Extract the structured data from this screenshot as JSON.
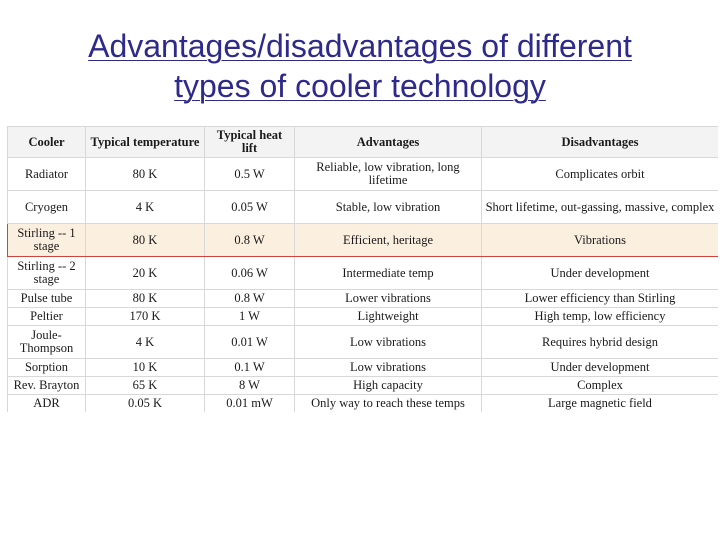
{
  "title": {
    "line1": "Advantages/disadvantages of different",
    "line2": "types of cooler technology"
  },
  "table": {
    "headers": [
      "Cooler",
      "Typical temperature",
      "Typical heat lift",
      "Advantages",
      "Disadvantages"
    ],
    "rows": [
      [
        "Radiator",
        "80 K",
        "0.5 W",
        "Reliable, low vibration, long lifetime",
        "Complicates orbit"
      ],
      [
        "Cryogen",
        "4 K",
        "0.05 W",
        "Stable, low vibration",
        "Short lifetime, out-gassing, massive, complex"
      ],
      [
        "Stirling -- 1 stage",
        "80 K",
        "0.8 W",
        "Efficient, heritage",
        "Vibrations"
      ],
      [
        "Stirling -- 2 stage",
        "20 K",
        "0.06 W",
        "Intermediate temp",
        "Under development"
      ],
      [
        "Pulse tube",
        "80 K",
        "0.8 W",
        "Lower vibrations",
        "Lower efficiency than Stirling"
      ],
      [
        "Peltier",
        "170 K",
        "1 W",
        "Lightweight",
        "High temp, low efficiency"
      ],
      [
        "Joule-Thompson",
        "4 K",
        "0.01 W",
        "Low vibrations",
        "Requires hybrid design"
      ],
      [
        "Sorption",
        "10 K",
        "0.1 W",
        "Low vibrations",
        "Under development"
      ],
      [
        "Rev. Brayton",
        "65 K",
        "8 W",
        "High capacity",
        "Complex"
      ],
      [
        "ADR",
        "0.05 K",
        "0.01 mW",
        "Only way to reach these temps",
        "Large magnetic field"
      ]
    ],
    "highlighted_row": "Stirling -- 1 stage",
    "highlight_color": "#fbefdf",
    "highlight_border_color": "#d0423a",
    "header_background": "#f3f3f3"
  },
  "colors": {
    "title": "#2e2a8c"
  }
}
